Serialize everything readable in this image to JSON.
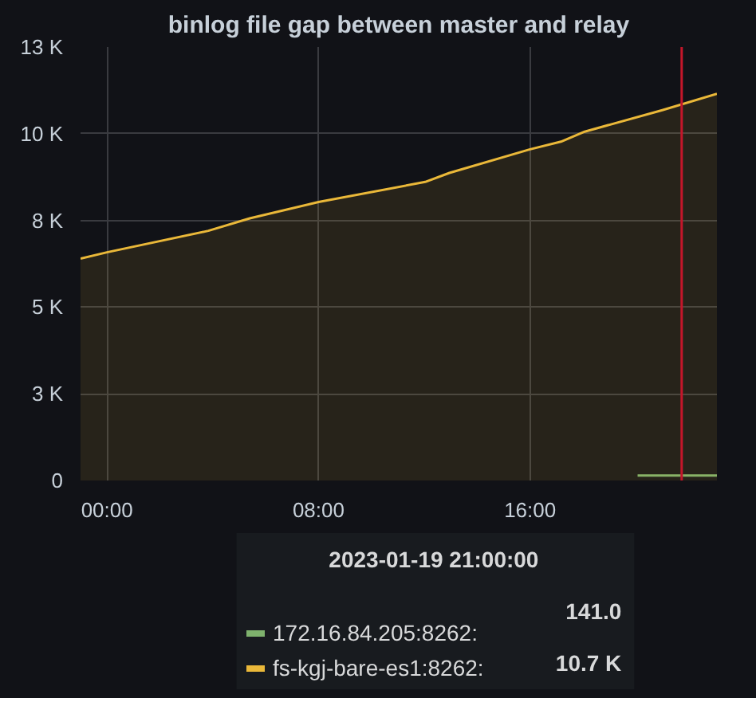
{
  "chart_data": {
    "type": "area",
    "title": "binlog file gap between master and relay",
    "xlim": [
      "2023-01-18T23:00",
      "2023-01-19T23:04"
    ],
    "xticks": [
      {
        "value": "2023-01-19T00:00",
        "label": "00:00"
      },
      {
        "value": "2023-01-19T08:00",
        "label": "08:00"
      },
      {
        "value": "2023-01-19T16:00",
        "label": "16:00"
      }
    ],
    "ylim": [
      0,
      12500
    ],
    "yticks": [
      0,
      {
        "value": 2500,
        "label": "3 K"
      },
      {
        "value": 5000,
        "label": "5 K"
      },
      {
        "value": 7500,
        "label": "8 K"
      },
      {
        "value": 10000,
        "label": "10 K"
      },
      {
        "value": 12500,
        "label": "13 K"
      }
    ],
    "series": [
      {
        "name": "172.16.84.205:8262:",
        "color": "#7eb26d",
        "type": "line",
        "x": [
          "2023-01-19T20:04",
          "2023-01-19T21:00",
          "2023-01-19T23:04"
        ],
        "values": [
          141,
          141,
          141
        ]
      },
      {
        "name": "fs-kgj-bare-es1:8262:",
        "color": "#eab839",
        "x": [
          "2023-01-18T23:00",
          "2023-01-19T00:00",
          "2023-01-19T03:50",
          "2023-01-19T05:24",
          "2023-01-19T08:00",
          "2023-01-19T12:02",
          "2023-01-19T12:57",
          "2023-01-19T16:00",
          "2023-01-19T17:10",
          "2023-01-19T18:04",
          "2023-01-19T21:00",
          "2023-01-19T23:04"
        ],
        "values": [
          6400,
          6580,
          7200,
          7560,
          8030,
          8610,
          8870,
          9550,
          9770,
          10060,
          10680,
          11150
        ]
      }
    ],
    "ref_lines": [
      {
        "axis": "x",
        "value": "2023-01-19T21:44",
        "label": null,
        "color": "#c4162a"
      }
    ],
    "annotations": [
      "2023-01-19 21:00:00",
      "141.0",
      "10.7 K"
    ],
    "grid": true,
    "legend": "bottom",
    "marker": "none",
    "line_style": "solid"
  }
}
